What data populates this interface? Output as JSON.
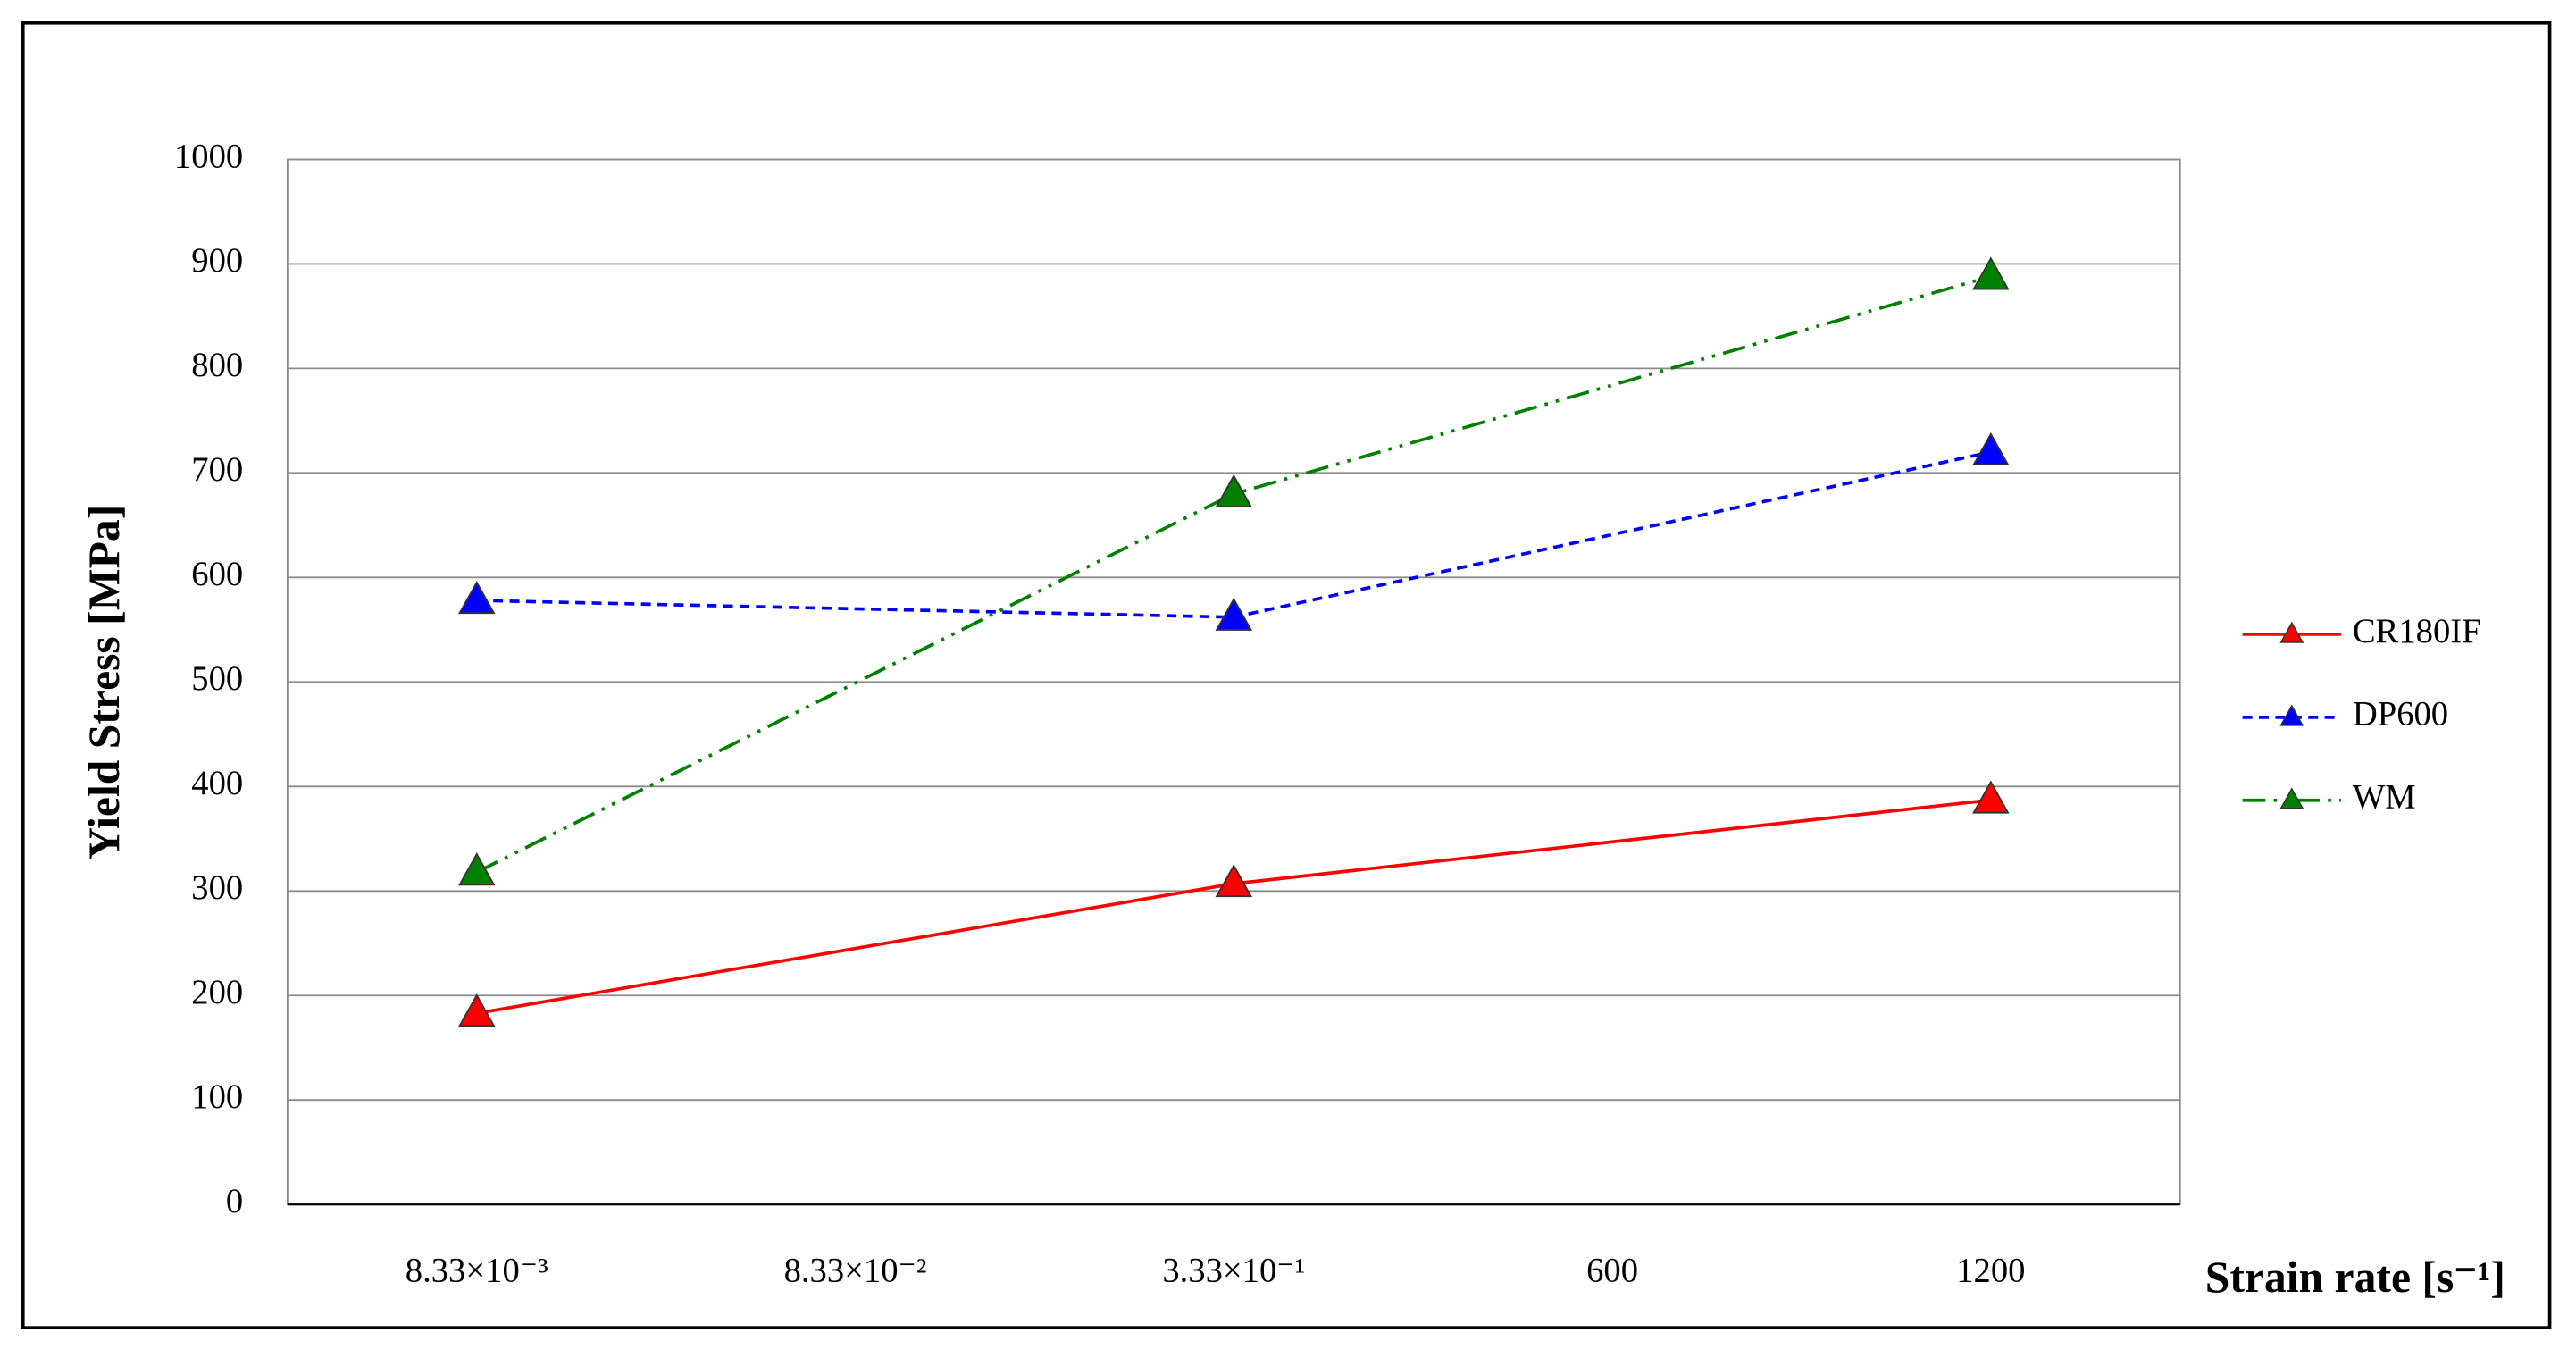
{
  "chart_data": {
    "type": "line",
    "x_label": "Strain rate [s⁻¹]",
    "y_label": "Yield Stress [MPa]",
    "categories": [
      "8.33×10⁻³",
      "8.33×10⁻²",
      "3.33×10⁻¹",
      "600",
      "1200"
    ],
    "series": [
      {
        "name": "CR180IF",
        "color": "#ff0000",
        "dash": "solid",
        "values": [
          183,
          null,
          307,
          null,
          387
        ]
      },
      {
        "name": "DP600",
        "color": "#0000ff",
        "dash": "dashed",
        "values": [
          578,
          null,
          562,
          null,
          720
        ]
      },
      {
        "name": "WM",
        "color": "#008000",
        "dash": "dashdotdot",
        "values": [
          318,
          null,
          680,
          null,
          888
        ]
      }
    ],
    "span_gaps": true,
    "marker": "triangle",
    "ylim": [
      0,
      1000
    ],
    "yticks": [
      0,
      100,
      200,
      300,
      400,
      500,
      600,
      700,
      800,
      900,
      1000
    ],
    "grid": true,
    "legend": "right"
  }
}
